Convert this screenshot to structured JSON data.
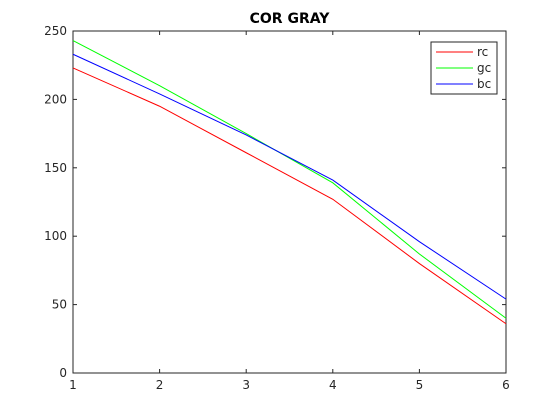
{
  "chart_data": {
    "type": "line",
    "title": "COR GRAY",
    "xlabel": "",
    "ylabel": "",
    "x": [
      1,
      2,
      3,
      4,
      5,
      6
    ],
    "xlim": [
      1,
      6
    ],
    "ylim": [
      0,
      250
    ],
    "xticks": [
      1,
      2,
      3,
      4,
      5,
      6
    ],
    "yticks": [
      0,
      50,
      100,
      150,
      200,
      250
    ],
    "grid": false,
    "legend_position": "top-right",
    "series": [
      {
        "name": "rc",
        "color": "#ff0000",
        "values": [
          223,
          195,
          161,
          127,
          80,
          36
        ]
      },
      {
        "name": "gc",
        "color": "#00ff00",
        "values": [
          243,
          210,
          175,
          139,
          87,
          40
        ]
      },
      {
        "name": "bc",
        "color": "#0000ff",
        "values": [
          233,
          204,
          174,
          141,
          96,
          54
        ]
      }
    ]
  }
}
